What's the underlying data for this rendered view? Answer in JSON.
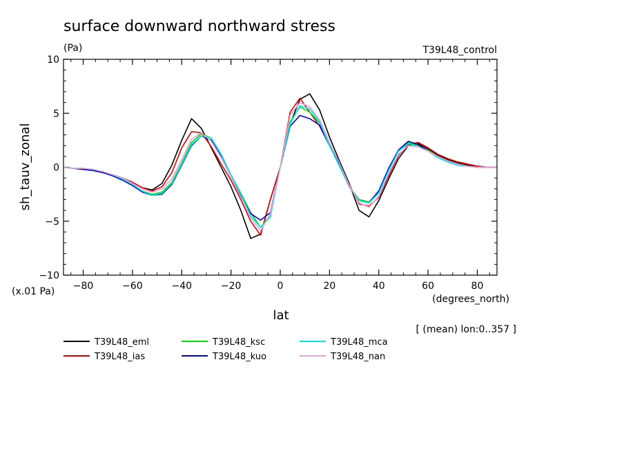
{
  "header": {
    "title": "surface downward northward stress",
    "units": "(Pa)",
    "experiment": "T39L48_control",
    "scale_note": "(x.01 Pa)",
    "region_note": "[ (mean) lon:0..357 ]"
  },
  "chart_data": {
    "type": "line",
    "title": "surface downward northward stress",
    "xlabel": "lat",
    "xunits": "(degrees_north)",
    "ylabel": "sh_tauv_zonal",
    "xlim": [
      -88,
      88
    ],
    "ylim": [
      -10,
      10
    ],
    "x_ticks": [
      -80,
      -60,
      -40,
      -20,
      0,
      20,
      40,
      60,
      80
    ],
    "x_tick_labels": [
      "−80",
      "−60",
      "−40",
      "−20",
      "0",
      "20",
      "40",
      "60",
      "80"
    ],
    "y_ticks": [
      -10,
      -5,
      0,
      5,
      10
    ],
    "y_tick_labels": [
      "−10",
      "−5",
      "0",
      "5",
      "10"
    ],
    "legend_position": "bottom",
    "x": [
      -88,
      -84,
      -80,
      -76,
      -72,
      -68,
      -64,
      -60,
      -56,
      -52,
      -48,
      -44,
      -40,
      -36,
      -32,
      -28,
      -24,
      -20,
      -16,
      -12,
      -8,
      -4,
      0,
      4,
      8,
      12,
      16,
      20,
      24,
      28,
      32,
      36,
      40,
      44,
      48,
      52,
      56,
      60,
      64,
      68,
      72,
      76,
      80,
      84,
      88
    ],
    "series": [
      {
        "name": "T39L48_eml",
        "color": "#000000",
        "values": [
          0,
          -0.1,
          -0.2,
          -0.3,
          -0.5,
          -0.7,
          -1.0,
          -1.4,
          -1.9,
          -2.1,
          -1.5,
          0.2,
          2.5,
          4.5,
          3.6,
          1.8,
          0,
          -1.8,
          -4.0,
          -6.6,
          -6.2,
          -3.0,
          0,
          4.0,
          6.3,
          6.8,
          5.3,
          2.8,
          0.6,
          -1.5,
          -4.0,
          -4.6,
          -3.1,
          -1.1,
          0.8,
          2.0,
          2.2,
          1.7,
          1.1,
          0.7,
          0.4,
          0.2,
          0.1,
          0,
          0
        ]
      },
      {
        "name": "T39L48_ias",
        "color": "#e00000",
        "values": [
          0,
          -0.1,
          -0.2,
          -0.3,
          -0.5,
          -0.7,
          -1.0,
          -1.4,
          -1.9,
          -2.2,
          -1.8,
          -0.5,
          1.8,
          3.3,
          3.2,
          1.9,
          0.3,
          -1.2,
          -3.0,
          -5.0,
          -6.3,
          -3.0,
          0,
          5.1,
          6.4,
          5.1,
          3.8,
          2.0,
          0.3,
          -1.6,
          -3.4,
          -3.6,
          -2.8,
          -0.8,
          1.1,
          2.1,
          2.3,
          1.8,
          1.2,
          0.8,
          0.5,
          0.3,
          0.1,
          0,
          0
        ]
      },
      {
        "name": "T39L48_ksc",
        "color": "#00dd00",
        "values": [
          0,
          -0.1,
          -0.2,
          -0.3,
          -0.5,
          -0.8,
          -1.2,
          -1.7,
          -2.2,
          -2.5,
          -2.3,
          -1.4,
          0.4,
          2.3,
          3.1,
          2.7,
          1.2,
          -0.7,
          -2.4,
          -4.2,
          -5.6,
          -4.4,
          0,
          4.2,
          5.6,
          5.1,
          4.1,
          2.1,
          0.2,
          -1.8,
          -3.0,
          -3.2,
          -2.3,
          -0.3,
          1.5,
          2.3,
          2.0,
          1.6,
          1.0,
          0.6,
          0.3,
          0.1,
          0,
          0,
          0
        ]
      },
      {
        "name": "T39L48_kuo",
        "color": "#0000d0",
        "values": [
          0,
          -0.1,
          -0.2,
          -0.3,
          -0.5,
          -0.8,
          -1.2,
          -1.7,
          -2.3,
          -2.6,
          -2.5,
          -1.6,
          0.2,
          2.0,
          2.9,
          2.5,
          1.0,
          -0.8,
          -2.6,
          -4.3,
          -4.9,
          -4.2,
          0,
          3.8,
          4.8,
          4.5,
          3.9,
          2.0,
          0.2,
          -1.8,
          -3.1,
          -3.3,
          -2.2,
          -0.1,
          1.6,
          2.4,
          2.1,
          1.5,
          0.9,
          0.5,
          0.2,
          0.1,
          0,
          0,
          0
        ]
      },
      {
        "name": "T39L48_mca",
        "color": "#00e8e8",
        "values": [
          0,
          -0.1,
          -0.1,
          -0.2,
          -0.4,
          -0.7,
          -1.1,
          -1.6,
          -2.2,
          -2.6,
          -2.4,
          -1.5,
          0.3,
          2.1,
          2.9,
          2.7,
          1.2,
          -0.7,
          -2.5,
          -4.5,
          -5.6,
          -4.6,
          0,
          4.0,
          5.7,
          5.4,
          4.2,
          2.0,
          0.1,
          -1.8,
          -3.1,
          -3.3,
          -2.4,
          -0.3,
          1.5,
          2.2,
          1.9,
          1.5,
          0.9,
          0.5,
          0.2,
          0.1,
          0,
          0,
          0
        ]
      },
      {
        "name": "T39L48_nan",
        "color": "#e8a0d8",
        "values": [
          0,
          -0.1,
          -0.1,
          -0.2,
          -0.4,
          -0.7,
          -1.0,
          -1.5,
          -2.0,
          -2.3,
          -2.0,
          -1.1,
          0.7,
          2.6,
          3.2,
          2.4,
          0.9,
          -0.9,
          -2.8,
          -4.7,
          -5.9,
          -4.3,
          0,
          4.8,
          6.0,
          5.6,
          4.4,
          2.3,
          0.4,
          -1.7,
          -3.3,
          -3.7,
          -2.7,
          -0.6,
          1.2,
          2.0,
          1.9,
          1.5,
          1.0,
          0.6,
          0.3,
          0.1,
          0,
          0,
          0
        ]
      }
    ]
  }
}
